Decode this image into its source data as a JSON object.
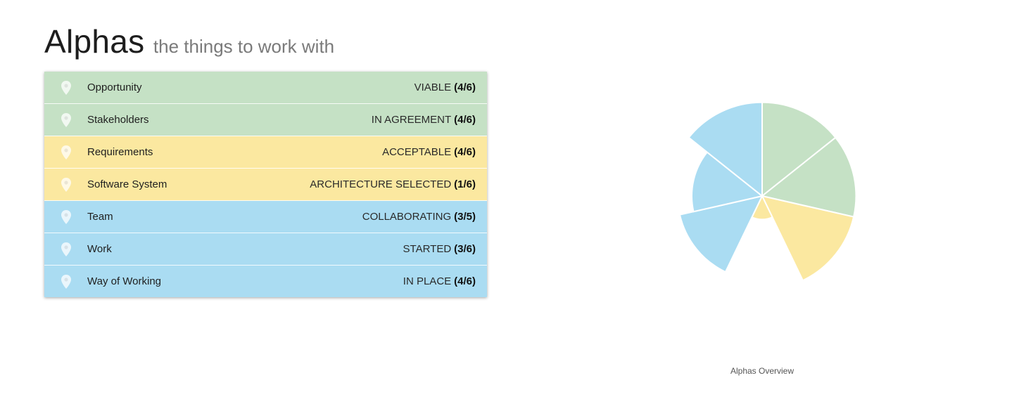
{
  "header": {
    "title": "Alphas",
    "subtitle": "the things to work with"
  },
  "alphas": [
    {
      "name": "Opportunity",
      "state": "VIABLE",
      "progress": "(4/6)",
      "reached": 4,
      "total": 6,
      "color": "#c5e1c5"
    },
    {
      "name": "Stakeholders",
      "state": "IN AGREEMENT",
      "progress": "(4/6)",
      "reached": 4,
      "total": 6,
      "color": "#c5e1c5"
    },
    {
      "name": "Requirements",
      "state": "ACCEPTABLE",
      "progress": "(4/6)",
      "reached": 4,
      "total": 6,
      "color": "#fbe8a0"
    },
    {
      "name": "Software System",
      "state": "ARCHITECTURE SELECTED",
      "progress": "(1/6)",
      "reached": 1,
      "total": 6,
      "color": "#fbe8a0"
    },
    {
      "name": "Team",
      "state": "COLLABORATING",
      "progress": "(3/5)",
      "reached": 3,
      "total": 5,
      "color": "#aadcf2"
    },
    {
      "name": "Work",
      "state": "STARTED",
      "progress": "(3/6)",
      "reached": 3,
      "total": 6,
      "color": "#aadcf2"
    },
    {
      "name": "Way of Working",
      "state": "IN PLACE",
      "progress": "(4/6)",
      "reached": 4,
      "total": 6,
      "color": "#aadcf2"
    }
  ],
  "icon": "map-pin-icon",
  "chart_data": {
    "type": "polar-area",
    "title": "Alphas Overview",
    "categories": [
      "Opportunity",
      "Stakeholders",
      "Requirements",
      "Software System",
      "Team",
      "Work",
      "Way of Working"
    ],
    "values": [
      0.667,
      0.667,
      0.667,
      0.167,
      0.6,
      0.5,
      0.667
    ],
    "colors": [
      "#c5e1c5",
      "#c5e1c5",
      "#fbe8a0",
      "#fbe8a0",
      "#aadcf2",
      "#aadcf2",
      "#aadcf2"
    ]
  }
}
